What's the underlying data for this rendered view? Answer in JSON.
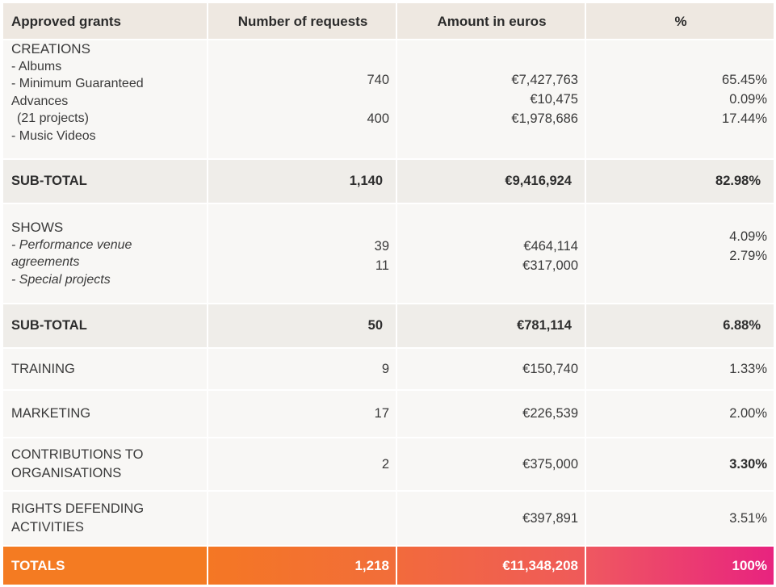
{
  "header": {
    "col1": "Approved grants",
    "col2": "Number of requests",
    "col3": "Amount in euros",
    "col4": "%"
  },
  "creations": {
    "title": "CREATIONS",
    "items": [
      "- Albums",
      "- Minimum Guaranteed",
      "Advances",
      "(21 projects)",
      "- Music Videos"
    ],
    "requests": [
      "740",
      "400"
    ],
    "amounts": [
      "€7,427,763",
      "€10,475",
      "€1,978,686"
    ],
    "percents": [
      "65.45%",
      "0.09%",
      "17.44%"
    ]
  },
  "subtotal1": {
    "label": "SUB-TOTAL",
    "requests": "1,140",
    "amount": "€9,416,924",
    "percent": "82.98%"
  },
  "shows": {
    "title": "SHOWS",
    "items": [
      "- Performance venue",
      "agreements",
      "- Special projects"
    ],
    "requests": [
      "39",
      "11"
    ],
    "amounts": [
      "€464,114",
      "€317,000"
    ],
    "percents": [
      "4.09%",
      "2.79%"
    ]
  },
  "subtotal2": {
    "label": "SUB-TOTAL",
    "requests": "50",
    "amount": "€781,114",
    "percent": "6.88%"
  },
  "training": {
    "label": "TRAINING",
    "requests": "9",
    "amount": "€150,740",
    "percent": "1.33%"
  },
  "marketing": {
    "label": "MARKETING",
    "requests": "17",
    "amount": "€226,539",
    "percent": "2.00%"
  },
  "contributions": {
    "label1": "CONTRIBUTIONS TO",
    "label2": "ORGANISATIONS",
    "requests": "2",
    "amount": "€375,000",
    "percent": "3.30%"
  },
  "rights": {
    "label1": "RIGHTS DEFENDING",
    "label2": "ACTIVITIES",
    "requests": "",
    "amount": "€397,891",
    "percent": "3.51%"
  },
  "totals": {
    "label": "TOTALS",
    "requests": "1,218",
    "amount": "€11,348,208",
    "percent": "100%"
  },
  "colors": {
    "header_bg": "#eee8e1",
    "cell_bg": "#f8f7f5",
    "subtotal_bg": "#efede9",
    "total_orange": "#f47b22",
    "total_pink": "#e8237f"
  }
}
